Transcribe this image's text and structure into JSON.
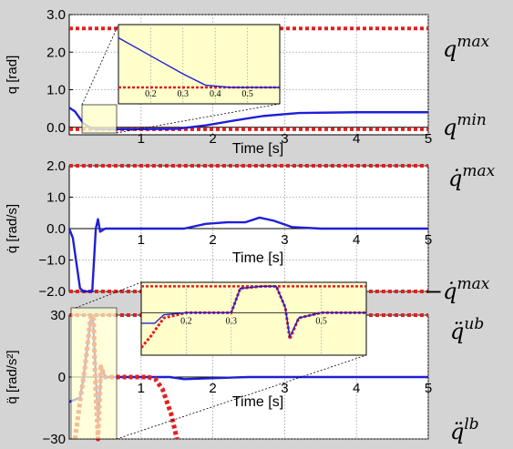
{
  "chart_data": [
    {
      "type": "line",
      "xlim": [
        0,
        5
      ],
      "ylim": [
        -0.2,
        3.0
      ],
      "ylabel": "q [rad]",
      "xlabel": "Time [s]",
      "x_ticks": [
        "1",
        "2",
        "3",
        "4",
        "5"
      ],
      "y_ticks": [
        {
          "value": 3.0,
          "label": "3.0"
        },
        {
          "value": 2.0,
          "label": "2.0"
        },
        {
          "value": 1.0,
          "label": "1.0"
        },
        {
          "value": 0.0,
          "label": "0.0"
        }
      ],
      "limits": [
        {
          "value": 2.63,
          "label": "q^max"
        },
        {
          "value": -0.05,
          "label": "q^min"
        }
      ],
      "series": [
        {
          "values": [
            [
              0,
              0.52
            ],
            [
              0.08,
              0.42
            ],
            [
              0.2,
              0.1
            ],
            [
              0.32,
              -0.04
            ],
            [
              0.45,
              -0.05
            ],
            [
              1.0,
              -0.05
            ],
            [
              1.5,
              -0.04
            ],
            [
              1.9,
              0.05
            ],
            [
              2.3,
              0.18
            ],
            [
              2.7,
              0.3
            ],
            [
              3.2,
              0.38
            ],
            [
              4.0,
              0.4
            ],
            [
              5.0,
              0.4
            ]
          ],
          "color": "#1f1fd6"
        }
      ],
      "inset": {
        "xlim": [
          0.1,
          0.6
        ],
        "x_ticks": [
          "0.2",
          "0.3",
          "0.4",
          "0.5"
        ],
        "values": [
          [
            0.1,
            0.44
          ],
          [
            0.2,
            0.28
          ],
          [
            0.3,
            0.12
          ],
          [
            0.37,
            0.02
          ],
          [
            0.45,
            0.0
          ],
          [
            0.6,
            0.0
          ]
        ],
        "limit": 0.0
      },
      "grid": true
    },
    {
      "type": "line",
      "xlim": [
        0,
        5
      ],
      "ylim": [
        -2.0,
        2.0
      ],
      "ylabel": "q̇ [rad/s]",
      "xlabel": "Time [s]",
      "x_ticks": [
        "1",
        "2",
        "3",
        "4",
        "5"
      ],
      "y_ticks": [
        {
          "value": 2.0,
          "label": "2.0"
        },
        {
          "value": 1.0,
          "label": "1.0"
        },
        {
          "value": 0.0,
          "label": "0.0"
        },
        {
          "value": -1.0,
          "label": "−1.0"
        },
        {
          "value": -2.0,
          "label": "−2.0"
        }
      ],
      "limits": [
        {
          "value": 2.0,
          "label": "q̇^max"
        },
        {
          "value": -2.0,
          "label": "−q̇^max"
        }
      ],
      "series": [
        {
          "values": [
            [
              0,
              0.0
            ],
            [
              0.05,
              -0.3
            ],
            [
              0.15,
              -1.9
            ],
            [
              0.2,
              -2.0
            ],
            [
              0.32,
              -2.0
            ],
            [
              0.37,
              0.0
            ],
            [
              0.4,
              0.3
            ],
            [
              0.43,
              -0.1
            ],
            [
              0.5,
              0.0
            ],
            [
              1.3,
              0.0
            ],
            [
              1.6,
              0.0
            ],
            [
              1.9,
              0.15
            ],
            [
              2.2,
              0.2
            ],
            [
              2.45,
              0.2
            ],
            [
              2.65,
              0.35
            ],
            [
              2.85,
              0.25
            ],
            [
              3.1,
              0.05
            ],
            [
              3.5,
              0.0
            ],
            [
              5.0,
              0.0
            ]
          ],
          "color": "#1f1fd6"
        }
      ],
      "grid": true
    },
    {
      "type": "line",
      "xlim": [
        0,
        5
      ],
      "ylim": [
        -30,
        30
      ],
      "ylabel": "q̈ [rad/s²]",
      "xlabel": "Time [s]",
      "x_ticks": [
        "1",
        "2",
        "3",
        "4",
        "5"
      ],
      "y_ticks": [
        {
          "value": 30,
          "label": "30"
        },
        {
          "value": 0,
          "label": "0"
        },
        {
          "value": -30,
          "label": "−30"
        }
      ],
      "limits": [
        {
          "value": 30,
          "label": "q̈^ub"
        }
      ],
      "lb_label": "q̈^lb",
      "series": [
        {
          "values": [
            [
              0,
              -12
            ],
            [
              0.15,
              -10
            ],
            [
              0.2,
              0
            ],
            [
              0.3,
              28
            ],
            [
              0.33,
              29
            ],
            [
              0.37,
              0
            ],
            [
              0.4,
              -22
            ],
            [
              0.45,
              5
            ],
            [
              0.5,
              0
            ],
            [
              1.4,
              0
            ],
            [
              1.6,
              -1
            ],
            [
              2.5,
              0
            ],
            [
              5.0,
              0
            ]
          ],
          "color": "#1f1fd6"
        },
        {
          "values": [
            [
              0.08,
              -30
            ],
            [
              0.15,
              -12
            ],
            [
              0.22,
              5
            ],
            [
              0.3,
              30
            ],
            [
              0.34,
              28
            ],
            [
              0.36,
              0
            ],
            [
              0.4,
              -30
            ],
            [
              0.44,
              5
            ],
            [
              0.5,
              0
            ],
            [
              1.1,
              0
            ],
            [
              1.2,
              -1
            ],
            [
              1.3,
              -6
            ],
            [
              1.42,
              -18
            ],
            [
              1.5,
              -30
            ]
          ],
          "color": "#e02020",
          "dashed": true
        }
      ],
      "inset": {
        "xlim": [
          0.1,
          0.6
        ],
        "x_ticks": [
          "0.2",
          "0.3",
          "0.5"
        ],
        "blue": [
          [
            0.1,
            -5
          ],
          [
            0.13,
            -5
          ],
          [
            0.15,
            3
          ],
          [
            0.2,
            5
          ],
          [
            0.3,
            5
          ],
          [
            0.32,
            28
          ],
          [
            0.37,
            30
          ],
          [
            0.4,
            30
          ],
          [
            0.42,
            10
          ],
          [
            0.43,
            -18
          ],
          [
            0.45,
            0
          ],
          [
            0.48,
            3
          ],
          [
            0.5,
            5
          ],
          [
            0.6,
            5
          ]
        ],
        "red": [
          [
            0.1,
            -28
          ],
          [
            0.12,
            -18
          ],
          [
            0.15,
            0
          ],
          [
            0.2,
            5
          ],
          [
            0.3,
            5
          ],
          [
            0.32,
            28
          ],
          [
            0.37,
            30
          ],
          [
            0.4,
            30
          ],
          [
            0.42,
            10
          ],
          [
            0.43,
            -20
          ],
          [
            0.45,
            0
          ],
          [
            0.48,
            3
          ],
          [
            0.5,
            5
          ],
          [
            0.6,
            5
          ]
        ]
      },
      "grid": true
    }
  ]
}
